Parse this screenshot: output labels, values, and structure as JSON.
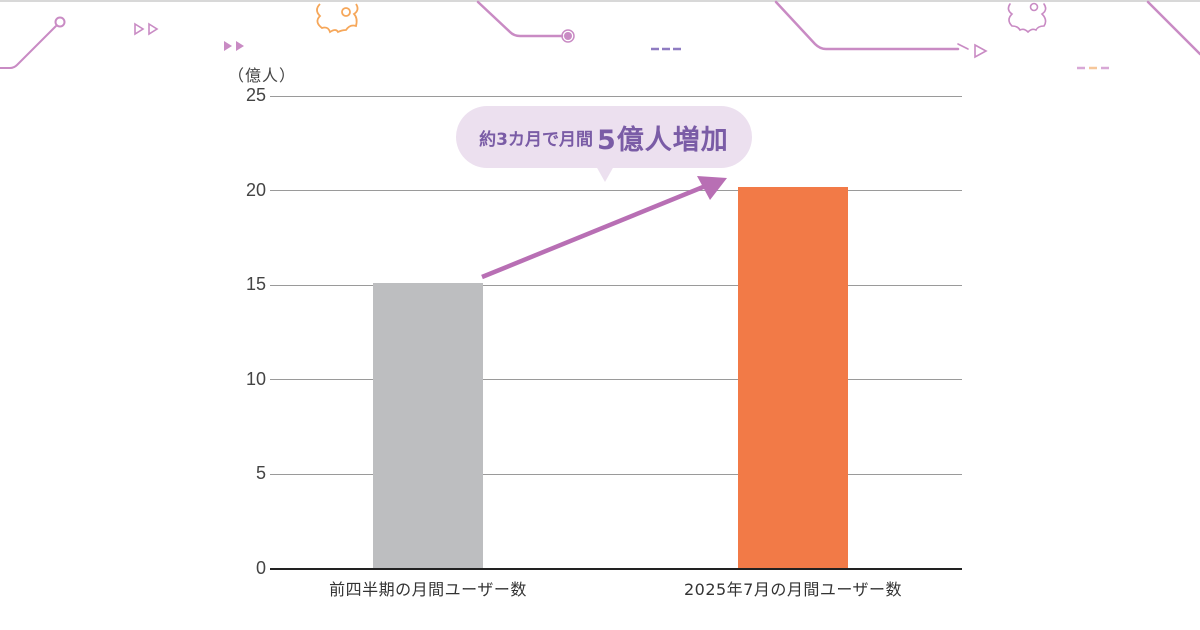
{
  "chart_data": {
    "type": "bar",
    "title": "",
    "unit_label": "（億人）",
    "xlabel": "",
    "ylabel": "（億人）",
    "ylim": [
      0,
      25
    ],
    "yticks": [
      0,
      5,
      10,
      15,
      20,
      25
    ],
    "grid": true,
    "categories": [
      "前四半期の月間ユーザー数",
      "2025年7月の月間ユーザー数"
    ],
    "values": [
      15.1,
      20.2
    ],
    "bar_colors": [
      "#bdbec0",
      "#f27a47"
    ],
    "annotation": {
      "text_small": "約3カ月で月間",
      "text_big": "5億人増加",
      "full_text": "約3カ月で月間5億人増加",
      "arrow_color": "#b86fb4",
      "bubble_color": "#ece0ef",
      "text_color": "#7a5ca6"
    }
  },
  "yticks_labels": [
    "0",
    "5",
    "10",
    "15",
    "20",
    "25"
  ],
  "colors": {
    "gray_bar": "#bdbec0",
    "orange_bar": "#f27a47",
    "decor_purple": "#c98bc4",
    "decor_orange": "#f6a75a",
    "grid": "#9a9a9a"
  }
}
